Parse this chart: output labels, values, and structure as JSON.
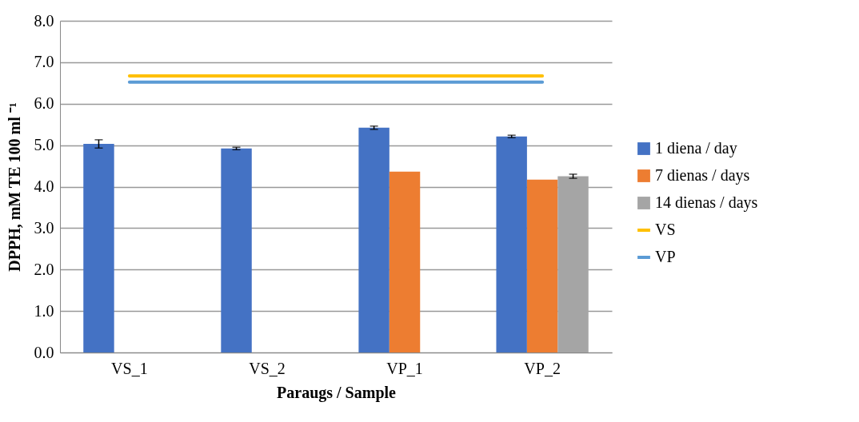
{
  "chart_data": {
    "type": "bar",
    "xlabel": "Paraugs / Sample",
    "ylabel": "DPPH, mM TE 100 ml ⁻¹",
    "categories": [
      "VS_1",
      "VS_2",
      "VP_1",
      "VP_2"
    ],
    "series": [
      {
        "name": "1 diena / day",
        "color": "#4472c4",
        "values": [
          5.03,
          4.92,
          5.42,
          5.21
        ],
        "errors": [
          0.1,
          0.03,
          0.04,
          0.03
        ]
      },
      {
        "name": "7 dienas / days",
        "color": "#ed7d31",
        "values": [
          null,
          null,
          4.36,
          4.17
        ]
      },
      {
        "name": "14 dienas / days",
        "color": "#a5a5a5",
        "values": [
          null,
          null,
          null,
          4.25
        ],
        "errors": [
          null,
          null,
          null,
          0.05
        ]
      },
      {
        "name": "VS",
        "type": "line",
        "color": "#ffc000",
        "values": [
          6.67,
          6.67,
          6.67,
          6.67
        ]
      },
      {
        "name": "VP",
        "type": "line",
        "color": "#5b9bd5",
        "values": [
          6.52,
          6.52,
          6.52,
          6.52
        ]
      }
    ],
    "ylim": [
      0,
      8
    ],
    "yticks": [
      {
        "value": 0,
        "label": "0.0"
      },
      {
        "value": 1,
        "label": "1.0"
      },
      {
        "value": 2,
        "label": "2.0"
      },
      {
        "value": 3,
        "label": "3.0"
      },
      {
        "value": 4,
        "label": "4.0"
      },
      {
        "value": 5,
        "label": "5.0"
      },
      {
        "value": 6,
        "label": "6.0"
      },
      {
        "value": 7,
        "label": "7.0"
      },
      {
        "value": 8,
        "label": "8.0"
      }
    ],
    "grid": "y",
    "legend": "right"
  }
}
